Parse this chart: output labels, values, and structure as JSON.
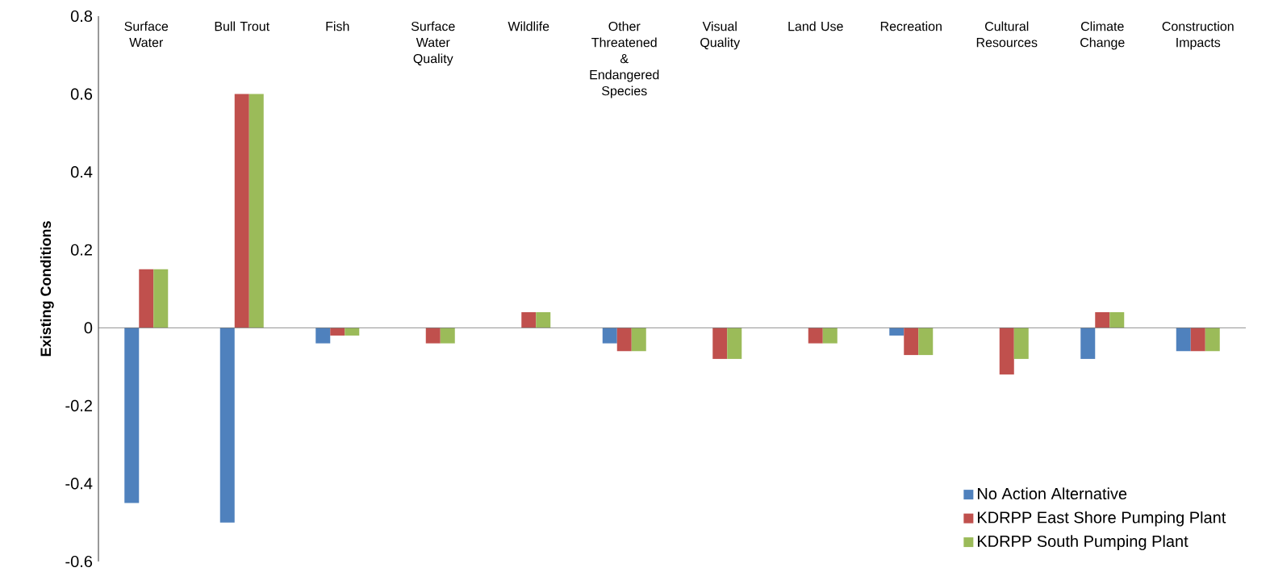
{
  "chart_data": {
    "type": "bar",
    "ylabel": "Existing Conditions",
    "categories": [
      "Surface Water",
      "Bull Trout",
      "Fish",
      "Surface Water Quality",
      "Wildlife",
      "Other Threatened & Endangered Species",
      "Visual Quality",
      "Land Use",
      "Recreation",
      "Cultural Resources",
      "Climate Change",
      "Construction Impacts"
    ],
    "series": [
      {
        "name": "No Action Alternative",
        "color": "#4f81bd",
        "values": [
          -0.45,
          -0.5,
          -0.04,
          0,
          0,
          -0.04,
          0,
          0,
          -0.02,
          0,
          -0.08,
          -0.06
        ]
      },
      {
        "name": "KDRPP East Shore Pumping Plant",
        "color": "#c0504d",
        "values": [
          0.15,
          0.6,
          -0.02,
          -0.04,
          0.04,
          -0.06,
          -0.08,
          -0.04,
          -0.07,
          -0.12,
          0.04,
          -0.06
        ]
      },
      {
        "name": "KDRPP South Pumping Plant",
        "color": "#9bbb59",
        "values": [
          0.15,
          0.6,
          -0.02,
          -0.04,
          0.04,
          -0.06,
          -0.08,
          -0.04,
          -0.07,
          -0.08,
          0.04,
          -0.06
        ]
      }
    ],
    "ylim": [
      -0.6,
      0.8
    ],
    "yticks": [
      -0.6,
      -0.4,
      -0.2,
      0,
      0.2,
      0.4,
      0.6,
      0.8
    ],
    "legend": "bottom right"
  }
}
